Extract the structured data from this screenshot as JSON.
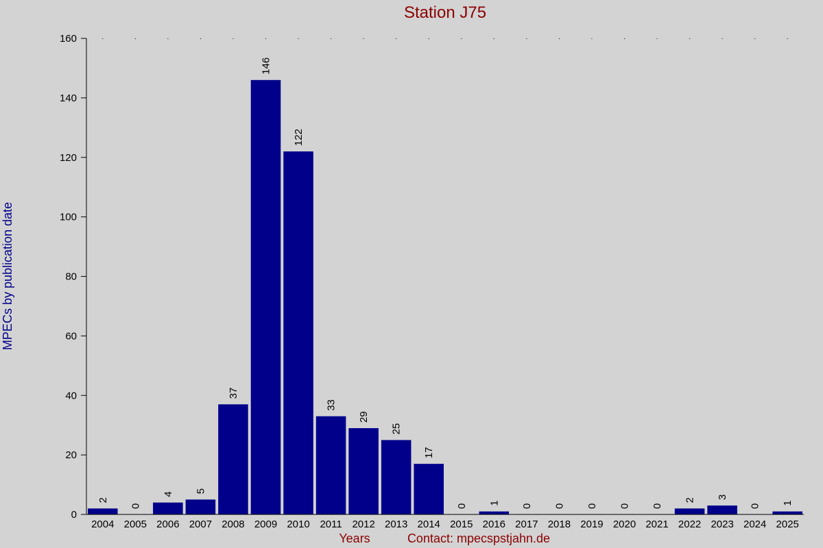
{
  "chart_data": {
    "type": "bar",
    "title": "Station J75",
    "ylabel": "MPECs by publication date",
    "xlabel": "Years",
    "contact": "Contact: mpecspstjahn.de",
    "ylim": [
      0,
      160
    ],
    "yticks": [
      0,
      20,
      40,
      60,
      80,
      100,
      120,
      140,
      160
    ],
    "categories": [
      "2004",
      "2005",
      "2006",
      "2007",
      "2008",
      "2009",
      "2010",
      "2011",
      "2012",
      "2013",
      "2014",
      "2015",
      "2016",
      "2017",
      "2018",
      "2019",
      "2020",
      "2021",
      "2022",
      "2023",
      "2024",
      "2025"
    ],
    "values": [
      2,
      0,
      4,
      5,
      37,
      146,
      122,
      33,
      29,
      25,
      17,
      0,
      1,
      0,
      0,
      0,
      0,
      0,
      2,
      3,
      0,
      1
    ],
    "bar_color": "#00008b",
    "background_color": "#d3d3d3",
    "title_color": "#8b0000",
    "ylabel_color": "#00008b",
    "grid": "dotted markers at top",
    "legend": "none"
  }
}
